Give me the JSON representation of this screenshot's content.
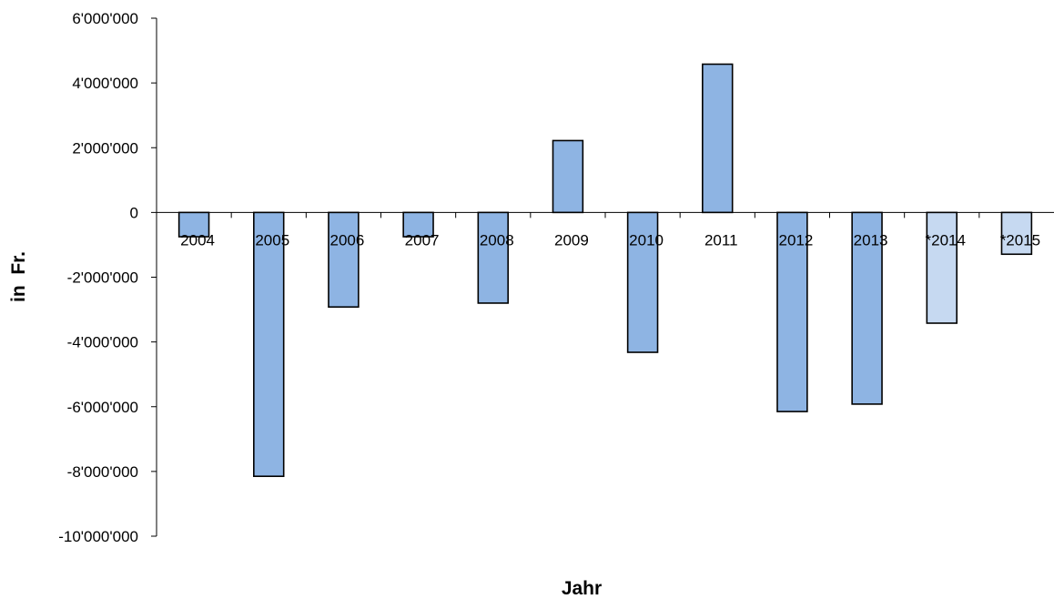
{
  "chart_data": {
    "type": "bar",
    "categories": [
      "2004",
      "2005",
      "2006",
      "2007",
      "2008",
      "2009",
      "2010",
      "2011",
      "2012",
      "2013",
      "*2014",
      "*2015"
    ],
    "values": [
      -750000,
      -8150000,
      -2920000,
      -750000,
      -2800000,
      2220000,
      -4320000,
      4580000,
      -6150000,
      -5920000,
      -3420000,
      -1290000
    ],
    "estimated": [
      false,
      false,
      false,
      false,
      false,
      false,
      false,
      false,
      false,
      false,
      true,
      true
    ],
    "colors": {
      "actual": "#8eb4e3",
      "estimated": "#c6d9f1"
    },
    "xlabel": "Jahr",
    "ylabel": "in  Fr.",
    "ylim": [
      -10000000,
      6000000
    ],
    "yticks": [
      6000000,
      4000000,
      2000000,
      0,
      -2000000,
      -4000000,
      -6000000,
      -8000000,
      -10000000
    ],
    "ytick_labels": [
      "6'000'000",
      "4'000'000",
      "2'000'000",
      "0",
      "-2'000'000",
      "-4'000'000",
      "-6'000'000",
      "-8'000'000",
      "-10'000'000"
    ],
    "grid": false,
    "legend": "none"
  }
}
